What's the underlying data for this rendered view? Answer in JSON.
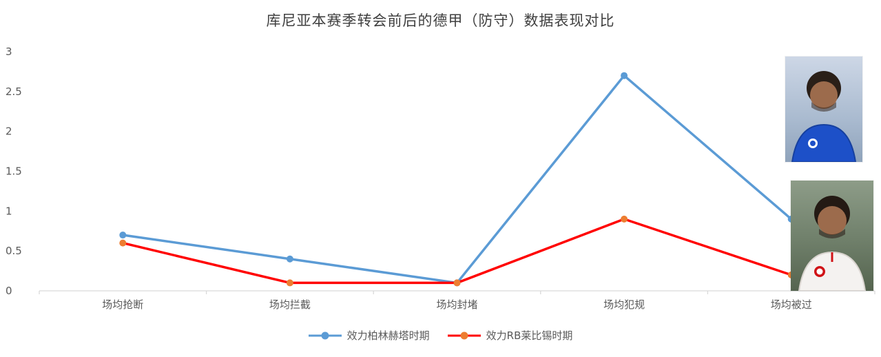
{
  "title": "库尼亚本赛季转会前后的德甲（防守）数据表现对比",
  "colors": {
    "axis": "#D9D9D9",
    "text": "#595959",
    "title": "#404040"
  },
  "chart_data": {
    "type": "line",
    "title": "库尼亚本赛季转会前后的德甲（防守）数据表现对比",
    "categories": [
      "场均抢断",
      "场均拦截",
      "场均封堵",
      "场均犯规",
      "场均被过"
    ],
    "series": [
      {
        "name": "效力柏林赫塔时期",
        "line_color": "#5B9BD5",
        "marker_color": "#5B9BD5",
        "values": [
          0.7,
          0.4,
          0.1,
          2.7,
          0.9
        ]
      },
      {
        "name": "效力RB莱比锡时期",
        "line_color": "#FF0000",
        "marker_color": "#ED7D31",
        "values": [
          0.6,
          0.1,
          0.1,
          0.9,
          0.2
        ]
      }
    ],
    "ylim": [
      0,
      3
    ],
    "ytick_labels": [
      "0",
      "0.5",
      "1",
      "1.5",
      "2",
      "2.5",
      "3"
    ],
    "grid": false,
    "legend_position": "bottom"
  },
  "photos": {
    "top": "hertha-player-photo",
    "bottom": "leipzig-player-photo"
  }
}
